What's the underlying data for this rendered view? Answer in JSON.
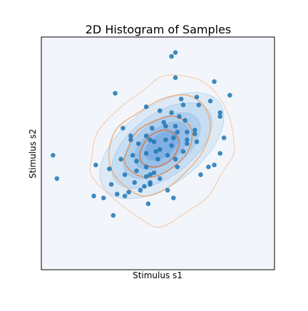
{
  "chart_data": {
    "type": "scatter",
    "title": "2D Histogram of Samples",
    "xlabel": "Stimulus s1",
    "ylabel": "Stimulus s2",
    "xlim": [
      -3,
      3
    ],
    "ylim": [
      -3,
      3
    ],
    "grid": false,
    "legend": "none",
    "colors": {
      "background": "#f2f6fb",
      "points": "#1f77b4",
      "gaussian_fill": "#4a90d9",
      "gaussian_edge": "#7fb2e0",
      "contour_light": "#f3cfb3",
      "contour_mid": "#f0a870",
      "contour_dark": "#d9692b"
    },
    "gaussian_density": {
      "mean": [
        0.1,
        0.2
      ],
      "angle_deg": 37,
      "levels": [
        {
          "a": 1.85,
          "b": 1.0,
          "opacity": 0.12
        },
        {
          "a": 1.5,
          "b": 0.8,
          "opacity": 0.14
        },
        {
          "a": 1.15,
          "b": 0.62,
          "opacity": 0.18
        },
        {
          "a": 0.82,
          "b": 0.45,
          "opacity": 0.24
        },
        {
          "a": 0.5,
          "b": 0.29,
          "opacity": 0.32
        }
      ]
    },
    "contours": [
      {
        "level": "outer",
        "color": "#f3cfb3",
        "points": [
          [
            -1.7,
            -0.1
          ],
          [
            -1.55,
            0.55
          ],
          [
            -0.95,
            1.2
          ],
          [
            -0.4,
            1.6
          ],
          [
            0.15,
            2.0
          ],
          [
            0.9,
            1.95
          ],
          [
            1.35,
            1.7
          ],
          [
            1.7,
            1.25
          ],
          [
            1.9,
            0.7
          ],
          [
            1.95,
            0.0
          ],
          [
            1.65,
            -0.5
          ],
          [
            1.3,
            -1.1
          ],
          [
            0.75,
            -1.5
          ],
          [
            0.05,
            -1.9
          ],
          [
            -0.5,
            -1.65
          ],
          [
            -1.1,
            -1.2
          ],
          [
            -1.7,
            -0.6
          ]
        ]
      },
      {
        "level": "middle",
        "color": "#f0a870",
        "points": [
          [
            -1.25,
            0.1
          ],
          [
            -1.05,
            0.65
          ],
          [
            -0.5,
            1.05
          ],
          [
            0.1,
            1.4
          ],
          [
            0.75,
            1.5
          ],
          [
            1.2,
            1.2
          ],
          [
            1.35,
            0.65
          ],
          [
            1.15,
            0.05
          ],
          [
            0.7,
            -0.5
          ],
          [
            0.15,
            -0.95
          ],
          [
            -0.4,
            -1.1
          ],
          [
            -0.9,
            -0.8
          ],
          [
            -1.2,
            -0.4
          ]
        ]
      },
      {
        "level": "inner",
        "color": "#e08650",
        "points": [
          [
            -0.8,
            0.05
          ],
          [
            -0.55,
            0.55
          ],
          [
            -0.05,
            0.85
          ],
          [
            0.45,
            0.95
          ],
          [
            0.85,
            0.65
          ],
          [
            0.8,
            0.1
          ],
          [
            0.4,
            -0.35
          ],
          [
            -0.1,
            -0.6
          ],
          [
            -0.55,
            -0.55
          ],
          [
            -0.85,
            -0.25
          ]
        ]
      },
      {
        "level": "core",
        "color": "#d9692b",
        "points": [
          [
            -0.45,
            0.05
          ],
          [
            -0.2,
            0.45
          ],
          [
            0.25,
            0.6
          ],
          [
            0.55,
            0.3
          ],
          [
            0.35,
            -0.15
          ],
          [
            -0.05,
            -0.35
          ],
          [
            -0.4,
            -0.25
          ]
        ]
      }
    ],
    "points": {
      "x": [
        0.35,
        0.45,
        0.45,
        1.0,
        1.05,
        1.35,
        1.6,
        -1.1,
        0.6,
        1.45,
        1.85,
        1.6,
        0.65,
        0.05,
        -0.3,
        0.35,
        0.55,
        0.7,
        0.15,
        0.95,
        0.45,
        0.2,
        0.75,
        0.95,
        1.0,
        0.5,
        -0.15,
        1.7,
        1.6,
        -0.7,
        -0.5,
        -0.3,
        -0.2,
        0.2,
        0.4,
        0.75,
        0.65,
        0.35,
        0.05,
        -0.05,
        -0.1,
        0.25,
        -0.3,
        0.0,
        -0.65,
        -0.95,
        -0.55,
        -0.3,
        0.5,
        -0.1,
        0.45,
        -0.55,
        -0.85,
        -0.3,
        -1.6,
        -0.6,
        -0.2,
        -0.75,
        -1.05,
        -0.2,
        0.25,
        0.05,
        -1.2,
        -1.4,
        -0.45,
        -1.65,
        -0.25,
        -0.35,
        -0.85,
        -1.25,
        1.1,
        1.3,
        1.45,
        -2.7,
        -2.6,
        0.4,
        -1.15,
        -0.2,
        0.75,
        -0.9,
        -0.7
      ],
      "y": [
        2.5,
        2.6,
        1.95,
        1.45,
        1.25,
        1.35,
        0.95,
        1.55,
        1.4,
        1.85,
        1.5,
        1.05,
        1.25,
        1.1,
        1.2,
        1.05,
        0.95,
        0.85,
        0.8,
        0.6,
        0.7,
        0.7,
        0.55,
        0.5,
        0.3,
        0.55,
        0.65,
        0.4,
        0.0,
        0.35,
        0.25,
        0.45,
        0.35,
        0.35,
        0.4,
        0.25,
        0.05,
        0.2,
        0.1,
        0.05,
        0.3,
        -0.05,
        0.0,
        -0.15,
        -0.05,
        -0.15,
        -0.2,
        -0.35,
        -0.35,
        -0.5,
        -0.15,
        -0.45,
        -0.55,
        -0.6,
        -0.3,
        -0.75,
        -0.75,
        -1.0,
        -1.05,
        -0.8,
        -0.95,
        -0.65,
        -0.8,
        -1.15,
        -0.95,
        -1.1,
        -1.3,
        -0.85,
        -1.1,
        -0.4,
        -0.55,
        -0.35,
        -0.3,
        -0.05,
        -0.65,
        -1.15,
        -1.6,
        -0.55,
        0.35,
        0.65,
        0.45
      ]
    }
  }
}
